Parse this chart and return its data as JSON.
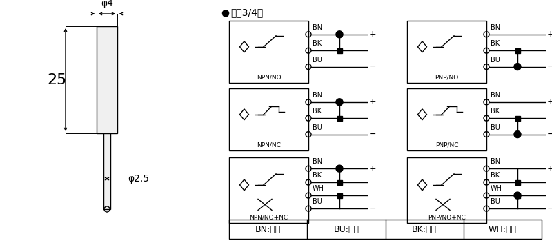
{
  "bg_color": "#ffffff",
  "title_bullet": "●",
  "title_text": "直涁3/4线",
  "legend_items": [
    "BN:棕色",
    "BU:兰色",
    "BK:黑色",
    "WH:白色"
  ],
  "phi4_label": "φ4",
  "phi25_label": "φ2.5",
  "dim25_label": "25",
  "circuits": [
    {
      "label": "NPN/NO",
      "col": 0,
      "row": 0,
      "is_pnp": false,
      "wiring": "NO"
    },
    {
      "label": "PNP/NO",
      "col": 1,
      "row": 0,
      "is_pnp": true,
      "wiring": "NO"
    },
    {
      "label": "NPN/NC",
      "col": 0,
      "row": 1,
      "is_pnp": false,
      "wiring": "NC"
    },
    {
      "label": "PNP/NC",
      "col": 1,
      "row": 1,
      "is_pnp": true,
      "wiring": "NC"
    },
    {
      "label": "NPN/NO+NC",
      "col": 0,
      "row": 2,
      "is_pnp": false,
      "wiring": "NO+NC"
    },
    {
      "label": "PNP/NO+NC",
      "col": 1,
      "row": 2,
      "is_pnp": true,
      "wiring": "NO+NC"
    }
  ]
}
